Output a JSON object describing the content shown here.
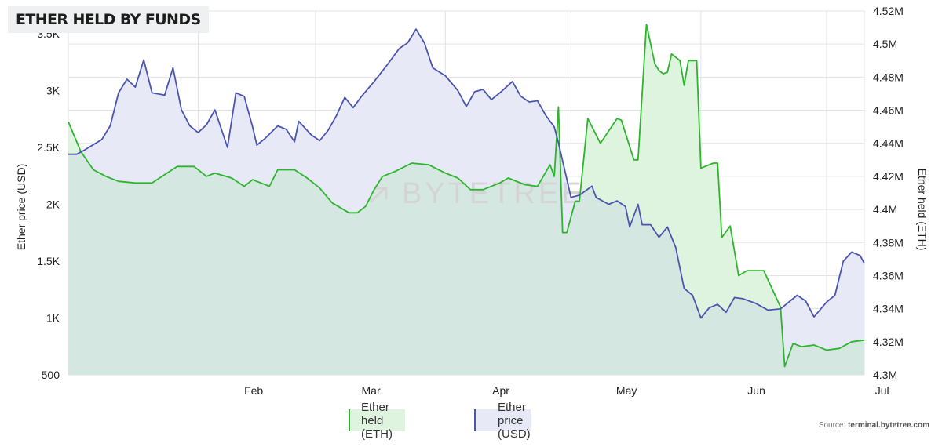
{
  "title": "ETHER HELD BY FUNDS",
  "source": {
    "prefix": "Source: ",
    "site": "terminal.bytetree.com"
  },
  "watermark": "BYTETREE",
  "colors": {
    "held_line": "#2db52d",
    "held_fill": "#dff4df",
    "price_line": "#4b55b0",
    "price_fill": "#e8e9f7",
    "overlap_fill": "#d4e7e1",
    "grid": "#e3e3e3"
  },
  "chart_data": {
    "type": "line",
    "title": "ETHER HELD BY FUNDS",
    "x_labels": [
      "Feb",
      "Mar",
      "Apr",
      "May",
      "Jun",
      "Jul"
    ],
    "ylabel_left": "Ether price (USD)",
    "ylabel_right": "Ether held (ΞTH)",
    "ylim_left": [
      500,
      3700
    ],
    "ylim_right": [
      4300000,
      4520000
    ],
    "y_ticks_left": [
      "500",
      "1K",
      "1.5K",
      "2K",
      "2.5K",
      "3K",
      "3.5K"
    ],
    "y_ticks_right": [
      "4.3M",
      "4.32M",
      "4.34M",
      "4.36M",
      "4.38M",
      "4.4M",
      "4.42M",
      "4.44M",
      "4.46M",
      "4.48M",
      "4.5M",
      "4.52M"
    ],
    "grid": true,
    "legend_position": "bottom-center",
    "series": [
      {
        "name": "Ether held (ETH)",
        "axis": "right",
        "points": [
          [
            "2022-01-01",
            4453000
          ],
          [
            "2022-01-04",
            4435000
          ],
          [
            "2022-01-07",
            4424000
          ],
          [
            "2022-01-10",
            4420000
          ],
          [
            "2022-01-13",
            4417000
          ],
          [
            "2022-01-17",
            4416000
          ],
          [
            "2022-01-21",
            4416000
          ],
          [
            "2022-01-24",
            4421000
          ],
          [
            "2022-01-27",
            4426000
          ],
          [
            "2022-01-31",
            4426000
          ],
          [
            "2022-02-03",
            4420000
          ],
          [
            "2022-02-05",
            4422000
          ],
          [
            "2022-02-09",
            4419000
          ],
          [
            "2022-02-12",
            4414000
          ],
          [
            "2022-02-14",
            4418000
          ],
          [
            "2022-02-18",
            4414000
          ],
          [
            "2022-02-20",
            4424000
          ],
          [
            "2022-02-24",
            4424000
          ],
          [
            "2022-02-27",
            4419000
          ],
          [
            "2022-03-02",
            4413000
          ],
          [
            "2022-03-05",
            4404000
          ],
          [
            "2022-03-09",
            4398000
          ],
          [
            "2022-03-11",
            4398000
          ],
          [
            "2022-03-13",
            4402000
          ],
          [
            "2022-03-15",
            4412000
          ],
          [
            "2022-03-17",
            4420000
          ],
          [
            "2022-03-20",
            4423000
          ],
          [
            "2022-03-24",
            4428000
          ],
          [
            "2022-03-28",
            4427000
          ],
          [
            "2022-04-01",
            4422000
          ],
          [
            "2022-04-04",
            4419000
          ],
          [
            "2022-04-07",
            4412000
          ],
          [
            "2022-04-10",
            4412000
          ],
          [
            "2022-04-14",
            4416000
          ],
          [
            "2022-04-16",
            4419000
          ],
          [
            "2022-04-20",
            4415000
          ],
          [
            "2022-04-23",
            4414000
          ],
          [
            "2022-04-26",
            4427000
          ],
          [
            "2022-04-27",
            4420000
          ],
          [
            "2022-04-28",
            4462000
          ],
          [
            "2022-04-29",
            4386000
          ],
          [
            "2022-04-30",
            4386000
          ],
          [
            "2022-05-02",
            4405000
          ],
          [
            "2022-05-03",
            4405000
          ],
          [
            "2022-05-05",
            4455000
          ],
          [
            "2022-05-08",
            4440000
          ],
          [
            "2022-05-12",
            4455000
          ],
          [
            "2022-05-13",
            4454000
          ],
          [
            "2022-05-16",
            4430000
          ],
          [
            "2022-05-17",
            4430000
          ],
          [
            "2022-05-19",
            4512000
          ],
          [
            "2022-05-21",
            4488000
          ],
          [
            "2022-05-22",
            4484000
          ],
          [
            "2022-05-23",
            4482000
          ],
          [
            "2022-05-24",
            4483000
          ],
          [
            "2022-05-25",
            4494000
          ],
          [
            "2022-05-27",
            4490000
          ],
          [
            "2022-05-28",
            4475000
          ],
          [
            "2022-05-29",
            4490000
          ],
          [
            "2022-05-31",
            4490000
          ],
          [
            "2022-06-01",
            4425000
          ],
          [
            "2022-06-04",
            4428000
          ],
          [
            "2022-06-05",
            4428000
          ],
          [
            "2022-06-06",
            4383000
          ],
          [
            "2022-06-08",
            4390000
          ],
          [
            "2022-06-10",
            4360000
          ],
          [
            "2022-06-12",
            4363000
          ],
          [
            "2022-06-16",
            4363000
          ],
          [
            "2022-06-20",
            4341000
          ],
          [
            "2022-06-21",
            4305000
          ],
          [
            "2022-06-23",
            4319000
          ],
          [
            "2022-06-25",
            4317000
          ],
          [
            "2022-06-28",
            4318000
          ],
          [
            "2022-07-01",
            4315000
          ],
          [
            "2022-07-04",
            4316000
          ],
          [
            "2022-07-07",
            4320000
          ],
          [
            "2022-07-10",
            4321000
          ]
        ]
      },
      {
        "name": "Ether price (USD)",
        "axis": "left",
        "points": [
          [
            "2022-01-01",
            2440
          ],
          [
            "2022-01-03",
            2440
          ],
          [
            "2022-01-05",
            2480
          ],
          [
            "2022-01-09",
            2570
          ],
          [
            "2022-01-11",
            2690
          ],
          [
            "2022-01-13",
            2980
          ],
          [
            "2022-01-15",
            3100
          ],
          [
            "2022-01-17",
            3030
          ],
          [
            "2022-01-19",
            3270
          ],
          [
            "2022-01-21",
            2980
          ],
          [
            "2022-01-24",
            2960
          ],
          [
            "2022-01-26",
            3200
          ],
          [
            "2022-01-28",
            2830
          ],
          [
            "2022-01-30",
            2690
          ],
          [
            "2022-02-01",
            2630
          ],
          [
            "2022-02-03",
            2700
          ],
          [
            "2022-02-05",
            2830
          ],
          [
            "2022-02-08",
            2500
          ],
          [
            "2022-02-10",
            2980
          ],
          [
            "2022-02-12",
            2950
          ],
          [
            "2022-02-14",
            2680
          ],
          [
            "2022-02-15",
            2520
          ],
          [
            "2022-02-17",
            2580
          ],
          [
            "2022-02-20",
            2690
          ],
          [
            "2022-02-22",
            2660
          ],
          [
            "2022-02-24",
            2550
          ],
          [
            "2022-02-25",
            2730
          ],
          [
            "2022-02-28",
            2610
          ],
          [
            "2022-03-02",
            2560
          ],
          [
            "2022-03-04",
            2650
          ],
          [
            "2022-03-06",
            2780
          ],
          [
            "2022-03-08",
            2940
          ],
          [
            "2022-03-10",
            2850
          ],
          [
            "2022-03-12",
            2950
          ],
          [
            "2022-03-15",
            3080
          ],
          [
            "2022-03-18",
            3220
          ],
          [
            "2022-03-21",
            3370
          ],
          [
            "2022-03-23",
            3420
          ],
          [
            "2022-03-25",
            3540
          ],
          [
            "2022-03-27",
            3420
          ],
          [
            "2022-03-29",
            3200
          ],
          [
            "2022-04-01",
            3130
          ],
          [
            "2022-04-04",
            3000
          ],
          [
            "2022-04-06",
            2860
          ],
          [
            "2022-04-08",
            2990
          ],
          [
            "2022-04-10",
            3010
          ],
          [
            "2022-04-12",
            2920
          ],
          [
            "2022-04-14",
            2980
          ],
          [
            "2022-04-17",
            3080
          ],
          [
            "2022-04-19",
            2950
          ],
          [
            "2022-04-21",
            2900
          ],
          [
            "2022-04-23",
            2910
          ],
          [
            "2022-04-25",
            2780
          ],
          [
            "2022-04-27",
            2680
          ],
          [
            "2022-04-28",
            2540
          ],
          [
            "2022-04-30",
            2220
          ],
          [
            "2022-05-01",
            2060
          ],
          [
            "2022-05-03",
            2080
          ],
          [
            "2022-05-06",
            2160
          ],
          [
            "2022-05-07",
            2060
          ],
          [
            "2022-05-10",
            2000
          ],
          [
            "2022-05-12",
            2030
          ],
          [
            "2022-05-14",
            1980
          ],
          [
            "2022-05-15",
            1800
          ],
          [
            "2022-05-17",
            2000
          ],
          [
            "2022-05-18",
            1820
          ],
          [
            "2022-05-20",
            1820
          ],
          [
            "2022-05-22",
            1710
          ],
          [
            "2022-05-24",
            1800
          ],
          [
            "2022-05-26",
            1620
          ],
          [
            "2022-05-28",
            1260
          ],
          [
            "2022-05-30",
            1200
          ],
          [
            "2022-06-01",
            1000
          ],
          [
            "2022-06-03",
            1090
          ],
          [
            "2022-06-05",
            1120
          ],
          [
            "2022-06-07",
            1050
          ],
          [
            "2022-06-09",
            1180
          ],
          [
            "2022-06-11",
            1170
          ],
          [
            "2022-06-14",
            1130
          ],
          [
            "2022-06-17",
            1070
          ],
          [
            "2022-06-20",
            1080
          ],
          [
            "2022-06-22",
            1140
          ],
          [
            "2022-06-24",
            1200
          ],
          [
            "2022-06-26",
            1150
          ],
          [
            "2022-06-28",
            1010
          ],
          [
            "2022-07-01",
            1140
          ],
          [
            "2022-07-03",
            1200
          ],
          [
            "2022-07-05",
            1500
          ],
          [
            "2022-07-07",
            1580
          ],
          [
            "2022-07-09",
            1550
          ],
          [
            "2022-07-10",
            1480
          ]
        ]
      }
    ]
  }
}
